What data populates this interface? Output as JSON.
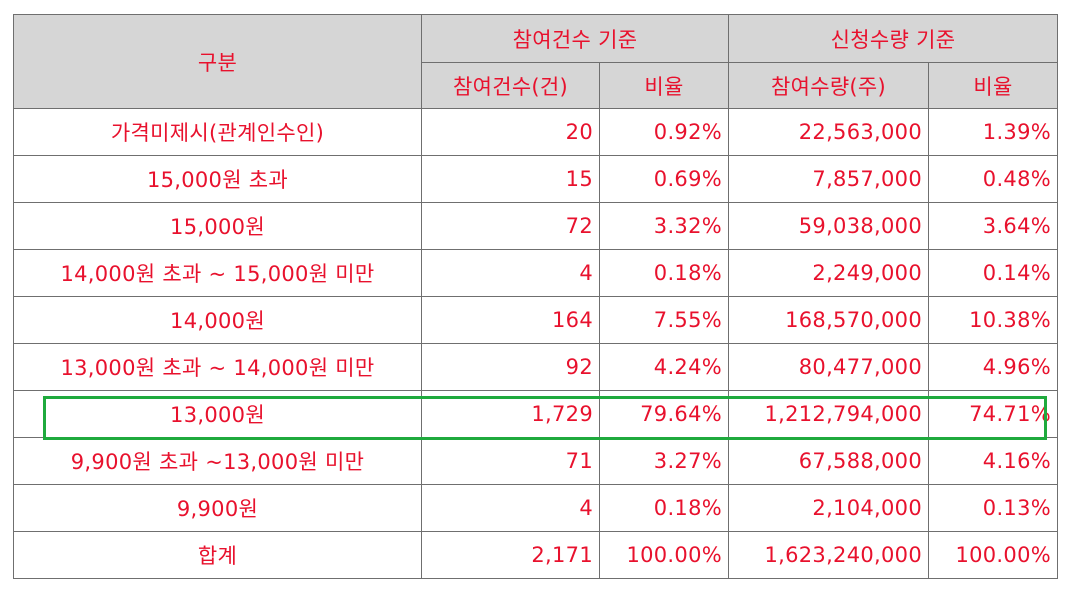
{
  "header": {
    "category": "구분",
    "participation_group": "참여건수 기준",
    "application_group": "신청수량 기준",
    "participation_count": "참여건수(건)",
    "participation_ratio": "비율",
    "application_qty": "참여수량(주)",
    "application_ratio": "비율"
  },
  "rows": [
    {
      "label": "가격미제시(관계인수인)",
      "count": "20",
      "count_ratio": "0.92%",
      "qty": "22,563,000",
      "qty_ratio": "1.39%"
    },
    {
      "label": "15,000원 초과",
      "count": "15",
      "count_ratio": "0.69%",
      "qty": "7,857,000",
      "qty_ratio": "0.48%"
    },
    {
      "label": "15,000원",
      "count": "72",
      "count_ratio": "3.32%",
      "qty": "59,038,000",
      "qty_ratio": "3.64%"
    },
    {
      "label": "14,000원 초과 ~ 15,000원 미만",
      "count": "4",
      "count_ratio": "0.18%",
      "qty": "2,249,000",
      "qty_ratio": "0.14%"
    },
    {
      "label": "14,000원",
      "count": "164",
      "count_ratio": "7.55%",
      "qty": "168,570,000",
      "qty_ratio": "10.38%"
    },
    {
      "label": "13,000원 초과 ~ 14,000원 미만",
      "count": "92",
      "count_ratio": "4.24%",
      "qty": "80,477,000",
      "qty_ratio": "4.96%"
    },
    {
      "label": "13,000원",
      "count": "1,729",
      "count_ratio": "79.64%",
      "qty": "1,212,794,000",
      "qty_ratio": "74.71%"
    },
    {
      "label": "9,900원 초과 ~13,000원 미만",
      "count": "71",
      "count_ratio": "3.27%",
      "qty": "67,588,000",
      "qty_ratio": "4.16%"
    },
    {
      "label": "9,900원",
      "count": "4",
      "count_ratio": "0.18%",
      "qty": "2,104,000",
      "qty_ratio": "0.13%"
    },
    {
      "label": "합계",
      "count": "2,171",
      "count_ratio": "100.00%",
      "qty": "1,623,240,000",
      "qty_ratio": "100.00%"
    }
  ],
  "colors": {
    "text": "#e8112d",
    "header_bg": "#d6d6d6",
    "border": "#6f6f6f",
    "highlight": "#1faa3d"
  }
}
